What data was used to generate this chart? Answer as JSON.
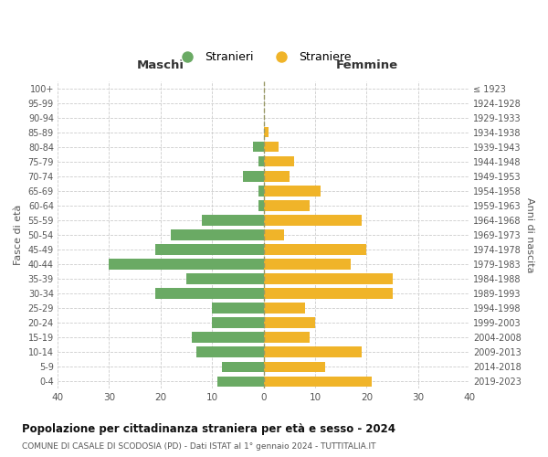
{
  "age_groups": [
    "0-4",
    "5-9",
    "10-14",
    "15-19",
    "20-24",
    "25-29",
    "30-34",
    "35-39",
    "40-44",
    "45-49",
    "50-54",
    "55-59",
    "60-64",
    "65-69",
    "70-74",
    "75-79",
    "80-84",
    "85-89",
    "90-94",
    "95-99",
    "100+"
  ],
  "birth_years": [
    "2019-2023",
    "2014-2018",
    "2009-2013",
    "2004-2008",
    "1999-2003",
    "1994-1998",
    "1989-1993",
    "1984-1988",
    "1979-1983",
    "1974-1978",
    "1969-1973",
    "1964-1968",
    "1959-1963",
    "1954-1958",
    "1949-1953",
    "1944-1948",
    "1939-1943",
    "1934-1938",
    "1929-1933",
    "1924-1928",
    "≤ 1923"
  ],
  "maschi": [
    9,
    8,
    13,
    14,
    10,
    10,
    21,
    15,
    30,
    21,
    18,
    12,
    1,
    1,
    4,
    1,
    2,
    0,
    0,
    0,
    0
  ],
  "femmine": [
    21,
    12,
    19,
    9,
    10,
    8,
    25,
    25,
    17,
    20,
    4,
    19,
    9,
    11,
    5,
    6,
    3,
    1,
    0,
    0,
    0
  ],
  "maschi_color": "#6aaa64",
  "femmine_color": "#f0b429",
  "bg_color": "#ffffff",
  "grid_color": "#cccccc",
  "title": "Popolazione per cittadinanza straniera per età e sesso - 2024",
  "subtitle": "COMUNE DI CASALE DI SCODOSIA (PD) - Dati ISTAT al 1° gennaio 2024 - TUTTITALIA.IT",
  "xlabel_left": "Maschi",
  "xlabel_right": "Femmine",
  "ylabel_left": "Fasce di età",
  "ylabel_right": "Anni di nascita",
  "legend_stranieri": "Stranieri",
  "legend_straniere": "Straniere",
  "xlim": 40
}
